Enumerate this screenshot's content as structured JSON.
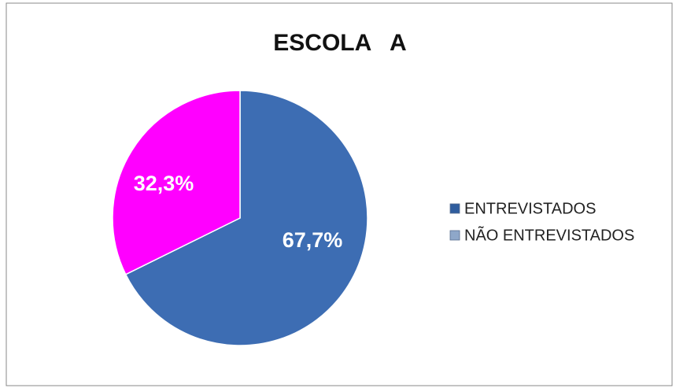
{
  "chart_data": {
    "type": "pie",
    "title": "ESCOLA   A",
    "categories": [
      "ENTREVISTADOS",
      "NÃO ENTREVISTADOS"
    ],
    "values": [
      67.7,
      32.3
    ],
    "value_labels": [
      "67,7%",
      "32,3%"
    ],
    "colors": [
      "#3d6db3",
      "#ff00ff"
    ],
    "legend_colors": [
      "#2f5d9e",
      "#8ea7c9"
    ],
    "legend": "right"
  }
}
